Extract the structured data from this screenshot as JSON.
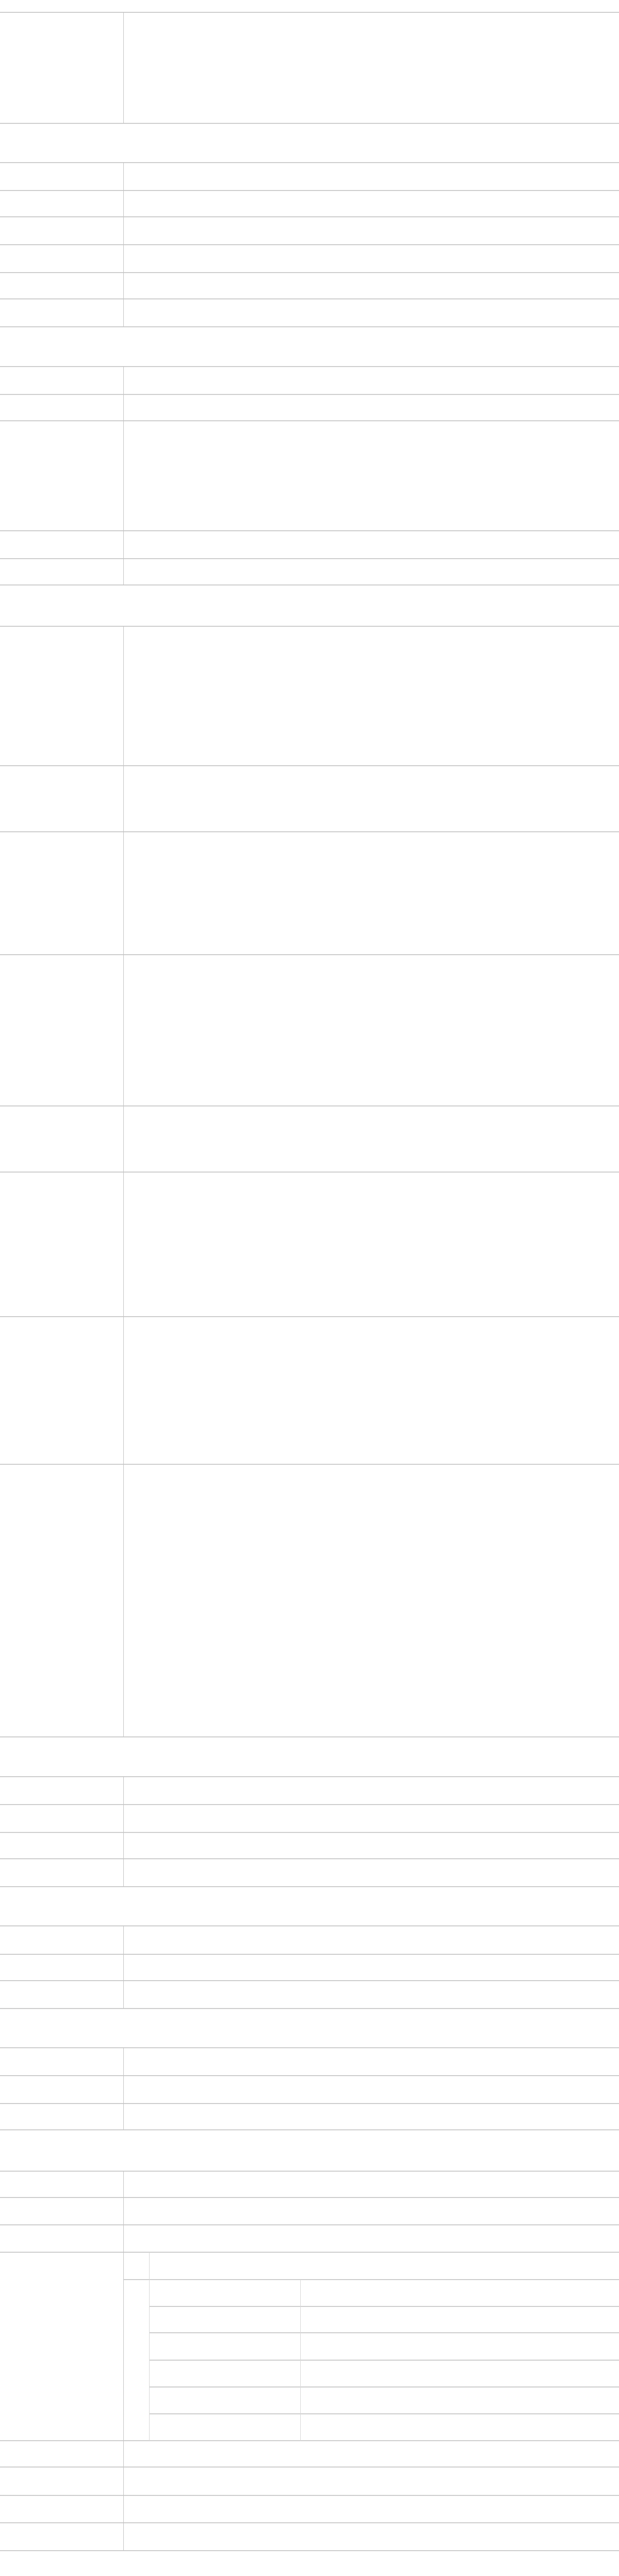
{
  "page": {
    "colors": {
      "background": "#ffffff",
      "border": "#c8c8c8"
    }
  }
}
